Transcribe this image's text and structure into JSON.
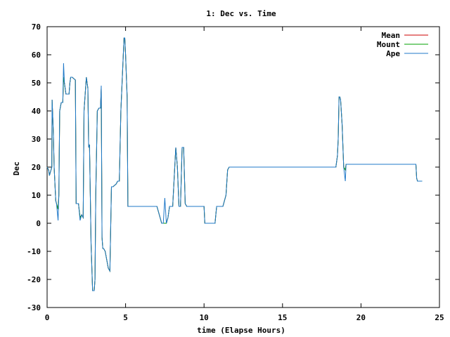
{
  "chart_data": {
    "type": "line",
    "title": "1: Dec vs. Time",
    "xlabel": "time (Elapse Hours)",
    "ylabel": "Dec",
    "xlim": [
      0,
      25
    ],
    "ylim": [
      -30,
      70
    ],
    "x_ticks": [
      "0",
      "5",
      "10",
      "15",
      "20",
      "25"
    ],
    "y_ticks": [
      "70",
      "60",
      "50",
      "40",
      "30",
      "20",
      "10",
      "0",
      "-10",
      "-20",
      "-30"
    ],
    "legend_position": "top-right",
    "grid": false,
    "series": [
      {
        "name": "Mean",
        "color": "#cc0000",
        "x": [
          0,
          0.1,
          0.15,
          0.3,
          0.32,
          0.4,
          0.45,
          0.55,
          0.6,
          0.7,
          0.75,
          0.8,
          0.9,
          1.0,
          1.05,
          1.1,
          1.2,
          1.4,
          1.45,
          1.5,
          1.6,
          1.8,
          1.85,
          2.0,
          2.1,
          2.2,
          2.3,
          2.35,
          2.5,
          2.6,
          2.65,
          2.7,
          2.8,
          2.9,
          3.0,
          3.05,
          3.1,
          3.2,
          3.3,
          3.4,
          3.45,
          3.5,
          3.55,
          3.6,
          3.7,
          3.9,
          4.0,
          4.1,
          4.2,
          4.4,
          4.5,
          4.6,
          4.7,
          4.9,
          4.95,
          5.0,
          5.1,
          5.15,
          5.25,
          5.5,
          6.0,
          6.5,
          7.0,
          7.2,
          7.3,
          7.4,
          7.5,
          7.6,
          7.7,
          7.8,
          7.9,
          8.0,
          8.2,
          8.3,
          8.4,
          8.5,
          8.6,
          8.7,
          8.8,
          8.9,
          9.0,
          9.05,
          9.3,
          9.6,
          10.0,
          10.05,
          10.2,
          10.5,
          10.7,
          10.8,
          11.0,
          11.2,
          11.4,
          11.5,
          11.6,
          12.0,
          14.0,
          16.0,
          18.0,
          18.4,
          18.5,
          18.55,
          18.6,
          18.65,
          18.7,
          18.8,
          18.9,
          19.0,
          19.05,
          19.1,
          19.2,
          20.0,
          21.0,
          22.0,
          23.0,
          23.5,
          23.55,
          23.6,
          23.9
        ],
        "values": [
          20,
          19,
          17,
          20,
          44,
          32,
          20,
          8,
          7,
          5,
          10,
          40,
          43,
          43,
          52,
          50,
          46,
          46,
          50,
          52,
          52,
          51,
          7,
          7,
          2,
          3,
          2,
          40,
          52,
          48,
          27,
          28,
          -7,
          -24,
          -24,
          -20,
          10,
          40,
          41,
          41,
          48,
          -5,
          -9,
          -9,
          -10,
          -16,
          -17,
          13,
          13,
          14,
          15,
          15,
          40,
          66,
          66,
          60,
          45,
          6,
          6,
          6,
          6,
          6,
          6,
          2,
          0,
          0,
          0,
          0,
          2,
          6,
          6,
          6,
          27,
          20,
          6,
          6,
          27,
          27,
          7,
          6,
          6,
          6,
          6,
          6,
          6,
          0,
          0,
          0,
          0,
          6,
          6,
          6,
          10,
          19,
          20,
          20,
          20,
          20,
          20,
          20,
          24,
          30,
          45,
          45,
          44,
          35,
          20,
          19,
          21,
          21,
          21,
          21,
          21,
          21,
          21,
          21,
          16,
          15,
          15
        ]
      },
      {
        "name": "Mount",
        "color": "#00a000",
        "x": [
          0,
          0.1,
          0.15,
          0.3,
          0.32,
          0.4,
          0.45,
          0.55,
          0.6,
          0.7,
          0.75,
          0.8,
          0.9,
          1.0,
          1.05,
          1.1,
          1.2,
          1.4,
          1.45,
          1.5,
          1.6,
          1.8,
          1.85,
          2.0,
          2.1,
          2.2,
          2.3,
          2.35,
          2.5,
          2.6,
          2.65,
          2.7,
          2.8,
          2.9,
          3.0,
          3.05,
          3.1,
          3.2,
          3.3,
          3.4,
          3.45,
          3.5,
          3.55,
          3.6,
          3.7,
          3.9,
          4.0,
          4.1,
          4.2,
          4.4,
          4.5,
          4.6,
          4.7,
          4.9,
          4.95,
          5.0,
          5.1,
          5.15,
          5.25,
          5.5,
          6.0,
          6.5,
          7.0,
          7.2,
          7.3,
          7.4,
          7.5,
          7.6,
          7.7,
          7.8,
          7.9,
          8.0,
          8.2,
          8.3,
          8.4,
          8.5,
          8.6,
          8.7,
          8.8,
          8.9,
          9.0,
          9.05,
          9.3,
          9.6,
          10.0,
          10.05,
          10.2,
          10.5,
          10.7,
          10.8,
          11.0,
          11.2,
          11.4,
          11.5,
          11.6,
          12.0,
          14.0,
          16.0,
          18.0,
          18.4,
          18.5,
          18.55,
          18.6,
          18.65,
          18.7,
          18.8,
          18.9,
          19.0,
          19.05,
          19.1,
          19.2,
          20.0,
          21.0,
          22.0,
          23.0,
          23.5,
          23.55,
          23.6,
          23.9
        ],
        "values": [
          20,
          19,
          17,
          20,
          44,
          32,
          20,
          8,
          7,
          5,
          10,
          40,
          43,
          43,
          52,
          50,
          46,
          46,
          50,
          52,
          52,
          51,
          7,
          7,
          2,
          3,
          2,
          40,
          52,
          48,
          27,
          28,
          -7,
          -24,
          -24,
          -20,
          10,
          40,
          41,
          41,
          48,
          -5,
          -9,
          -9,
          -10,
          -16,
          -17,
          13,
          13,
          14,
          15,
          15,
          40,
          66,
          66,
          60,
          45,
          6,
          6,
          6,
          6,
          6,
          6,
          2,
          0,
          0,
          0,
          0,
          2,
          6,
          6,
          6,
          27,
          20,
          6,
          6,
          27,
          27,
          7,
          6,
          6,
          6,
          6,
          6,
          6,
          0,
          0,
          0,
          0,
          6,
          6,
          6,
          10,
          19,
          20,
          20,
          20,
          20,
          20,
          20,
          24,
          30,
          45,
          45,
          44,
          35,
          20,
          19,
          21,
          21,
          21,
          21,
          21,
          21,
          21,
          21,
          16,
          15,
          15
        ]
      },
      {
        "name": "Ape",
        "color": "#1f78c8",
        "x": [
          0,
          0.1,
          0.15,
          0.3,
          0.32,
          0.4,
          0.45,
          0.55,
          0.6,
          0.7,
          0.75,
          0.8,
          0.9,
          1.0,
          1.05,
          1.1,
          1.2,
          1.4,
          1.45,
          1.5,
          1.6,
          1.8,
          1.85,
          2.0,
          2.1,
          2.2,
          2.3,
          2.35,
          2.5,
          2.6,
          2.65,
          2.7,
          2.8,
          2.9,
          3.0,
          3.05,
          3.1,
          3.2,
          3.3,
          3.4,
          3.45,
          3.5,
          3.55,
          3.6,
          3.7,
          3.9,
          4.0,
          4.1,
          4.2,
          4.4,
          4.5,
          4.6,
          4.7,
          4.9,
          4.95,
          5.0,
          5.1,
          5.15,
          5.25,
          5.5,
          6.0,
          6.5,
          7.0,
          7.2,
          7.3,
          7.4,
          7.5,
          7.6,
          7.7,
          7.8,
          7.9,
          8.0,
          8.2,
          8.3,
          8.4,
          8.5,
          8.6,
          8.7,
          8.8,
          8.9,
          9.0,
          9.05,
          9.3,
          9.6,
          10.0,
          10.05,
          10.2,
          10.5,
          10.7,
          10.8,
          11.0,
          11.2,
          11.4,
          11.5,
          11.6,
          12.0,
          14.0,
          16.0,
          18.0,
          18.4,
          18.5,
          18.55,
          18.6,
          18.65,
          18.7,
          18.8,
          18.9,
          19.0,
          19.05,
          19.1,
          19.2,
          20.0,
          21.0,
          22.0,
          23.0,
          23.5,
          23.55,
          23.6,
          23.9
        ],
        "values": [
          20,
          19,
          17,
          20,
          44,
          32,
          20,
          8,
          7,
          1,
          10,
          40,
          43,
          43,
          57,
          50,
          46,
          46,
          50,
          52,
          52,
          51,
          7,
          7,
          1,
          3,
          2,
          40,
          52,
          48,
          27,
          28,
          -7,
          -24,
          -24,
          -20,
          10,
          40,
          41,
          41,
          49,
          -5,
          -9,
          -9,
          -10,
          -16,
          -17,
          13,
          13,
          14,
          15,
          15,
          40,
          66,
          66,
          60,
          45,
          6,
          6,
          6,
          6,
          6,
          6,
          2,
          0,
          0,
          9,
          0,
          2,
          6,
          6,
          6,
          27,
          20,
          6,
          6,
          27,
          27,
          7,
          6,
          6,
          6,
          6,
          6,
          6,
          0,
          0,
          0,
          0,
          6,
          6,
          6,
          10,
          19,
          20,
          20,
          20,
          20,
          20,
          20,
          24,
          30,
          45,
          45,
          44,
          35,
          20,
          15,
          21,
          21,
          21,
          21,
          21,
          21,
          21,
          21,
          16,
          15,
          15
        ]
      }
    ]
  }
}
